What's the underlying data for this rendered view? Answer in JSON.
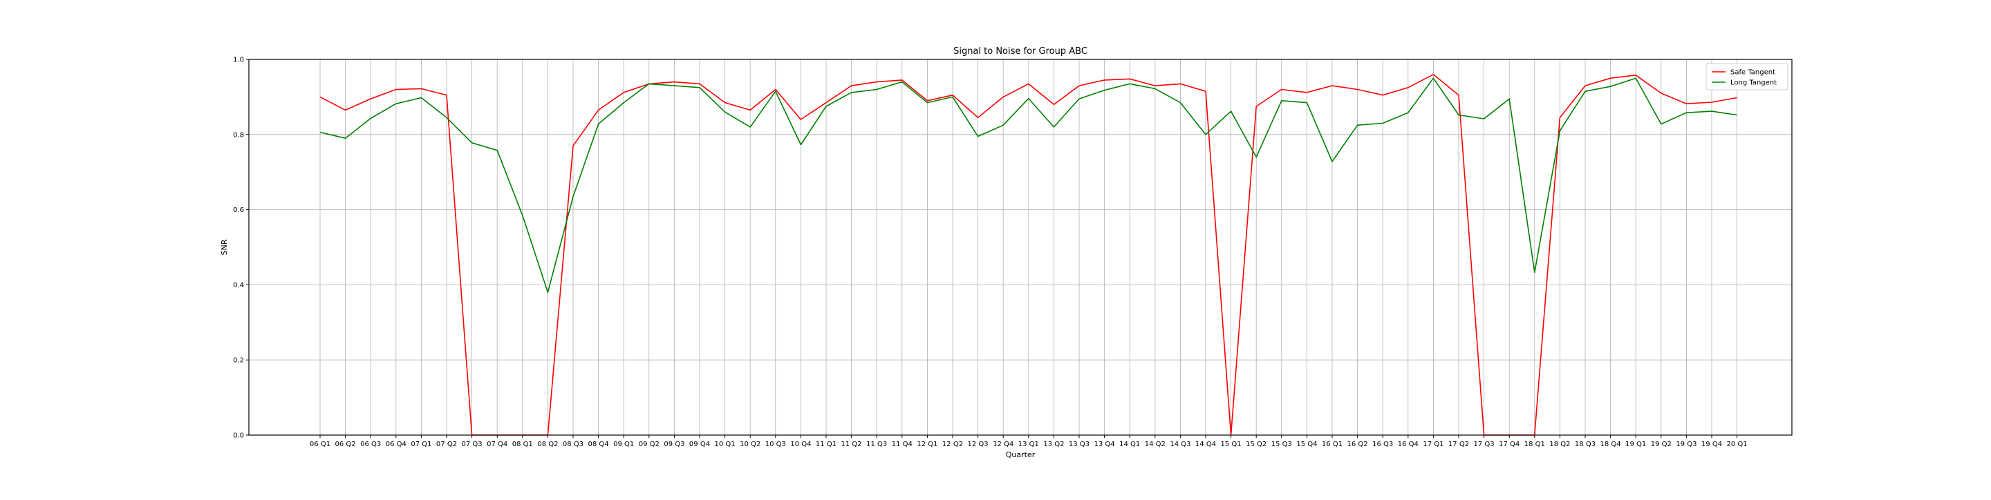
{
  "chart_data": {
    "type": "line",
    "title": "Signal to Noise for Group ABC",
    "xlabel": "Quarter",
    "ylabel": "SNR",
    "ylim": [
      0.0,
      1.0
    ],
    "yticks": [
      "0.0",
      "0.2",
      "0.4",
      "0.6",
      "0.8",
      "1.0"
    ],
    "grid": true,
    "legend_position": "top-right",
    "categories": [
      "06 Q1",
      "06 Q2",
      "06 Q3",
      "06 Q4",
      "07 Q1",
      "07 Q2",
      "07 Q3",
      "07 Q4",
      "08 Q1",
      "08 Q2",
      "08 Q3",
      "08 Q4",
      "09 Q1",
      "09 Q2",
      "09 Q3",
      "09 Q4",
      "10 Q1",
      "10 Q2",
      "10 Q3",
      "10 Q4",
      "11 Q1",
      "11 Q2",
      "11 Q3",
      "11 Q4",
      "12 Q1",
      "12 Q2",
      "12 Q3",
      "12 Q4",
      "13 Q1",
      "13 Q2",
      "13 Q3",
      "13 Q4",
      "14 Q1",
      "14 Q2",
      "14 Q3",
      "14 Q4",
      "15 Q1",
      "15 Q2",
      "15 Q3",
      "15 Q4",
      "16 Q1",
      "16 Q2",
      "16 Q3",
      "16 Q4",
      "17 Q1",
      "17 Q2",
      "17 Q3",
      "17 Q4",
      "18 Q1",
      "18 Q2",
      "18 Q3",
      "18 Q4",
      "19 Q1",
      "19 Q2",
      "19 Q3",
      "19 Q4",
      "20 Q1"
    ],
    "series": [
      {
        "name": "Safe Tangent",
        "color": "#ff0000",
        "values": [
          0.9,
          0.865,
          0.895,
          0.92,
          0.922,
          0.905,
          0.0,
          0.0,
          0.0,
          0.0,
          0.77,
          0.865,
          0.912,
          0.935,
          0.94,
          0.935,
          0.885,
          0.865,
          0.92,
          0.84,
          0.885,
          0.93,
          0.94,
          0.945,
          0.89,
          0.905,
          0.845,
          0.9,
          0.935,
          0.88,
          0.93,
          0.945,
          0.948,
          0.93,
          0.935,
          0.915,
          0.0,
          0.875,
          0.92,
          0.912,
          0.93,
          0.92,
          0.905,
          0.925,
          0.96,
          0.905,
          0.0,
          0.0,
          0.0,
          0.845,
          0.93,
          0.95,
          0.958,
          0.91,
          0.882,
          0.886,
          0.898
        ]
      },
      {
        "name": "Long Tangent",
        "color": "#008000",
        "values": [
          0.806,
          0.79,
          0.843,
          0.882,
          0.898,
          0.845,
          0.778,
          0.758,
          0.585,
          0.38,
          0.635,
          0.828,
          0.885,
          0.935,
          0.93,
          0.925,
          0.86,
          0.82,
          0.915,
          0.773,
          0.875,
          0.912,
          0.92,
          0.94,
          0.885,
          0.9,
          0.795,
          0.825,
          0.896,
          0.82,
          0.895,
          0.918,
          0.935,
          0.922,
          0.885,
          0.8,
          0.862,
          0.74,
          0.89,
          0.885,
          0.728,
          0.825,
          0.83,
          0.858,
          0.95,
          0.852,
          0.842,
          0.895,
          0.433,
          0.81,
          0.915,
          0.928,
          0.95,
          0.828,
          0.858,
          0.862,
          0.852
        ]
      }
    ]
  }
}
